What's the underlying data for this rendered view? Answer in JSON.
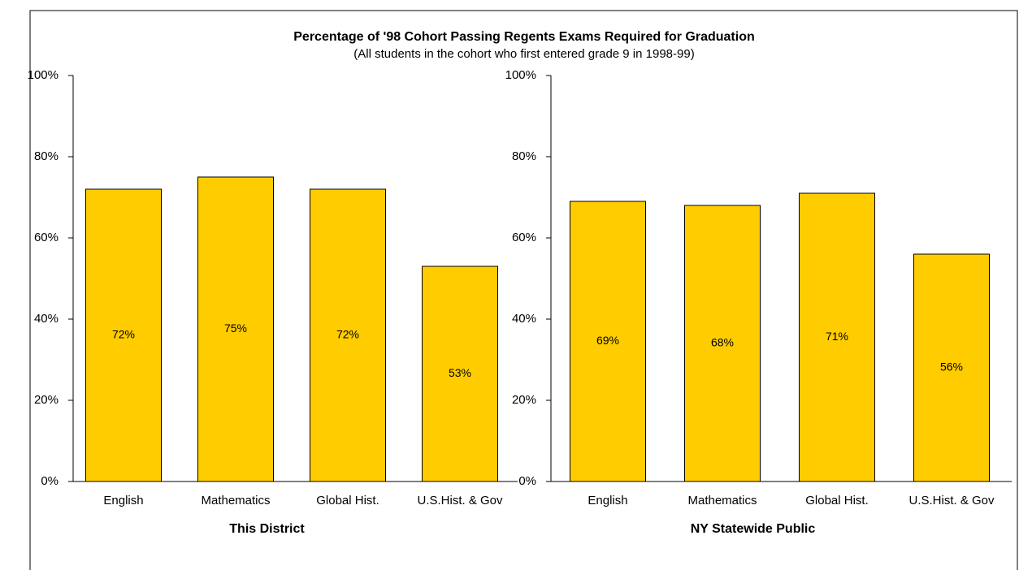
{
  "header": {
    "title": "Percentage of '98 Cohort Passing Regents Exams Required for Graduation",
    "subtitle": "(All students in the cohort who first entered grade 9 in 1998-99)"
  },
  "chart_data": [
    {
      "type": "bar",
      "xlabel": "This District",
      "categories": [
        "English",
        "Mathematics",
        "Global Hist.",
        "U.S.Hist. & Gov"
      ],
      "values": [
        72,
        75,
        72,
        53
      ],
      "value_labels": [
        "72%",
        "75%",
        "72%",
        "53%"
      ],
      "color": "#ffcc00",
      "ylim": [
        0,
        100
      ],
      "yticks": [
        {
          "value": 0,
          "label": "0%"
        },
        {
          "value": 20,
          "label": "20%"
        },
        {
          "value": 40,
          "label": "40%"
        },
        {
          "value": 60,
          "label": "60%"
        },
        {
          "value": 80,
          "label": "80%"
        },
        {
          "value": 100,
          "label": "100%"
        }
      ]
    },
    {
      "type": "bar",
      "xlabel": "NY Statewide Public",
      "categories": [
        "English",
        "Mathematics",
        "Global Hist.",
        "U.S.Hist. & Gov"
      ],
      "values": [
        69,
        68,
        71,
        56
      ],
      "value_labels": [
        "69%",
        "68%",
        "71%",
        "56%"
      ],
      "color": "#ffcc00",
      "ylim": [
        0,
        100
      ],
      "yticks": [
        {
          "value": 0,
          "label": "0%"
        },
        {
          "value": 20,
          "label": "20%"
        },
        {
          "value": 40,
          "label": "40%"
        },
        {
          "value": 60,
          "label": "60%"
        },
        {
          "value": 80,
          "label": "80%"
        },
        {
          "value": 100,
          "label": "100%"
        }
      ]
    }
  ]
}
